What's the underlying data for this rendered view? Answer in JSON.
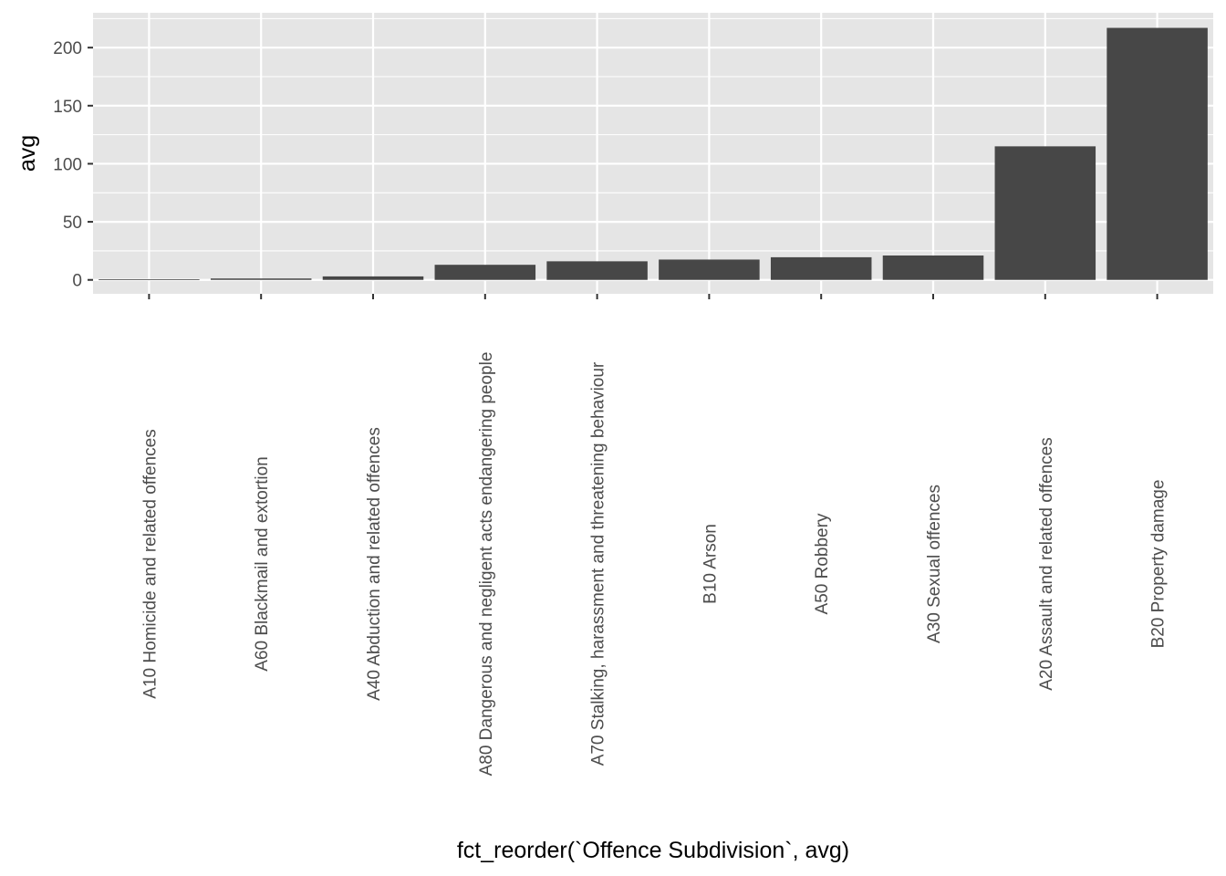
{
  "chart_data": {
    "type": "bar",
    "title": "",
    "xlabel": "fct_reorder(`Offence Subdivision`, avg)",
    "ylabel": "avg",
    "categories": [
      "A10 Homicide and related offences",
      "A60 Blackmail and extortion",
      "A40 Abduction and related offences",
      "A80 Dangerous and negligent acts endangering people",
      "A70 Stalking, harassment and threatening behaviour",
      "B10 Arson",
      "A50 Robbery",
      "A30 Sexual offences",
      "A20 Assault and related offences",
      "B20 Property damage"
    ],
    "values": [
      0.5,
      1.2,
      3,
      13,
      16,
      17.5,
      19.5,
      21,
      115,
      217
    ],
    "ylim": [
      -12,
      230
    ],
    "yticks": [
      0,
      50,
      100,
      150,
      200
    ],
    "grid": true,
    "legend": "none",
    "colors": {
      "panel_background": "#e5e5e5",
      "grid_major": "#ffffff",
      "bar_fill": "#474747",
      "tick_text": "#4d4d4d",
      "tick_mark": "#333333"
    }
  }
}
